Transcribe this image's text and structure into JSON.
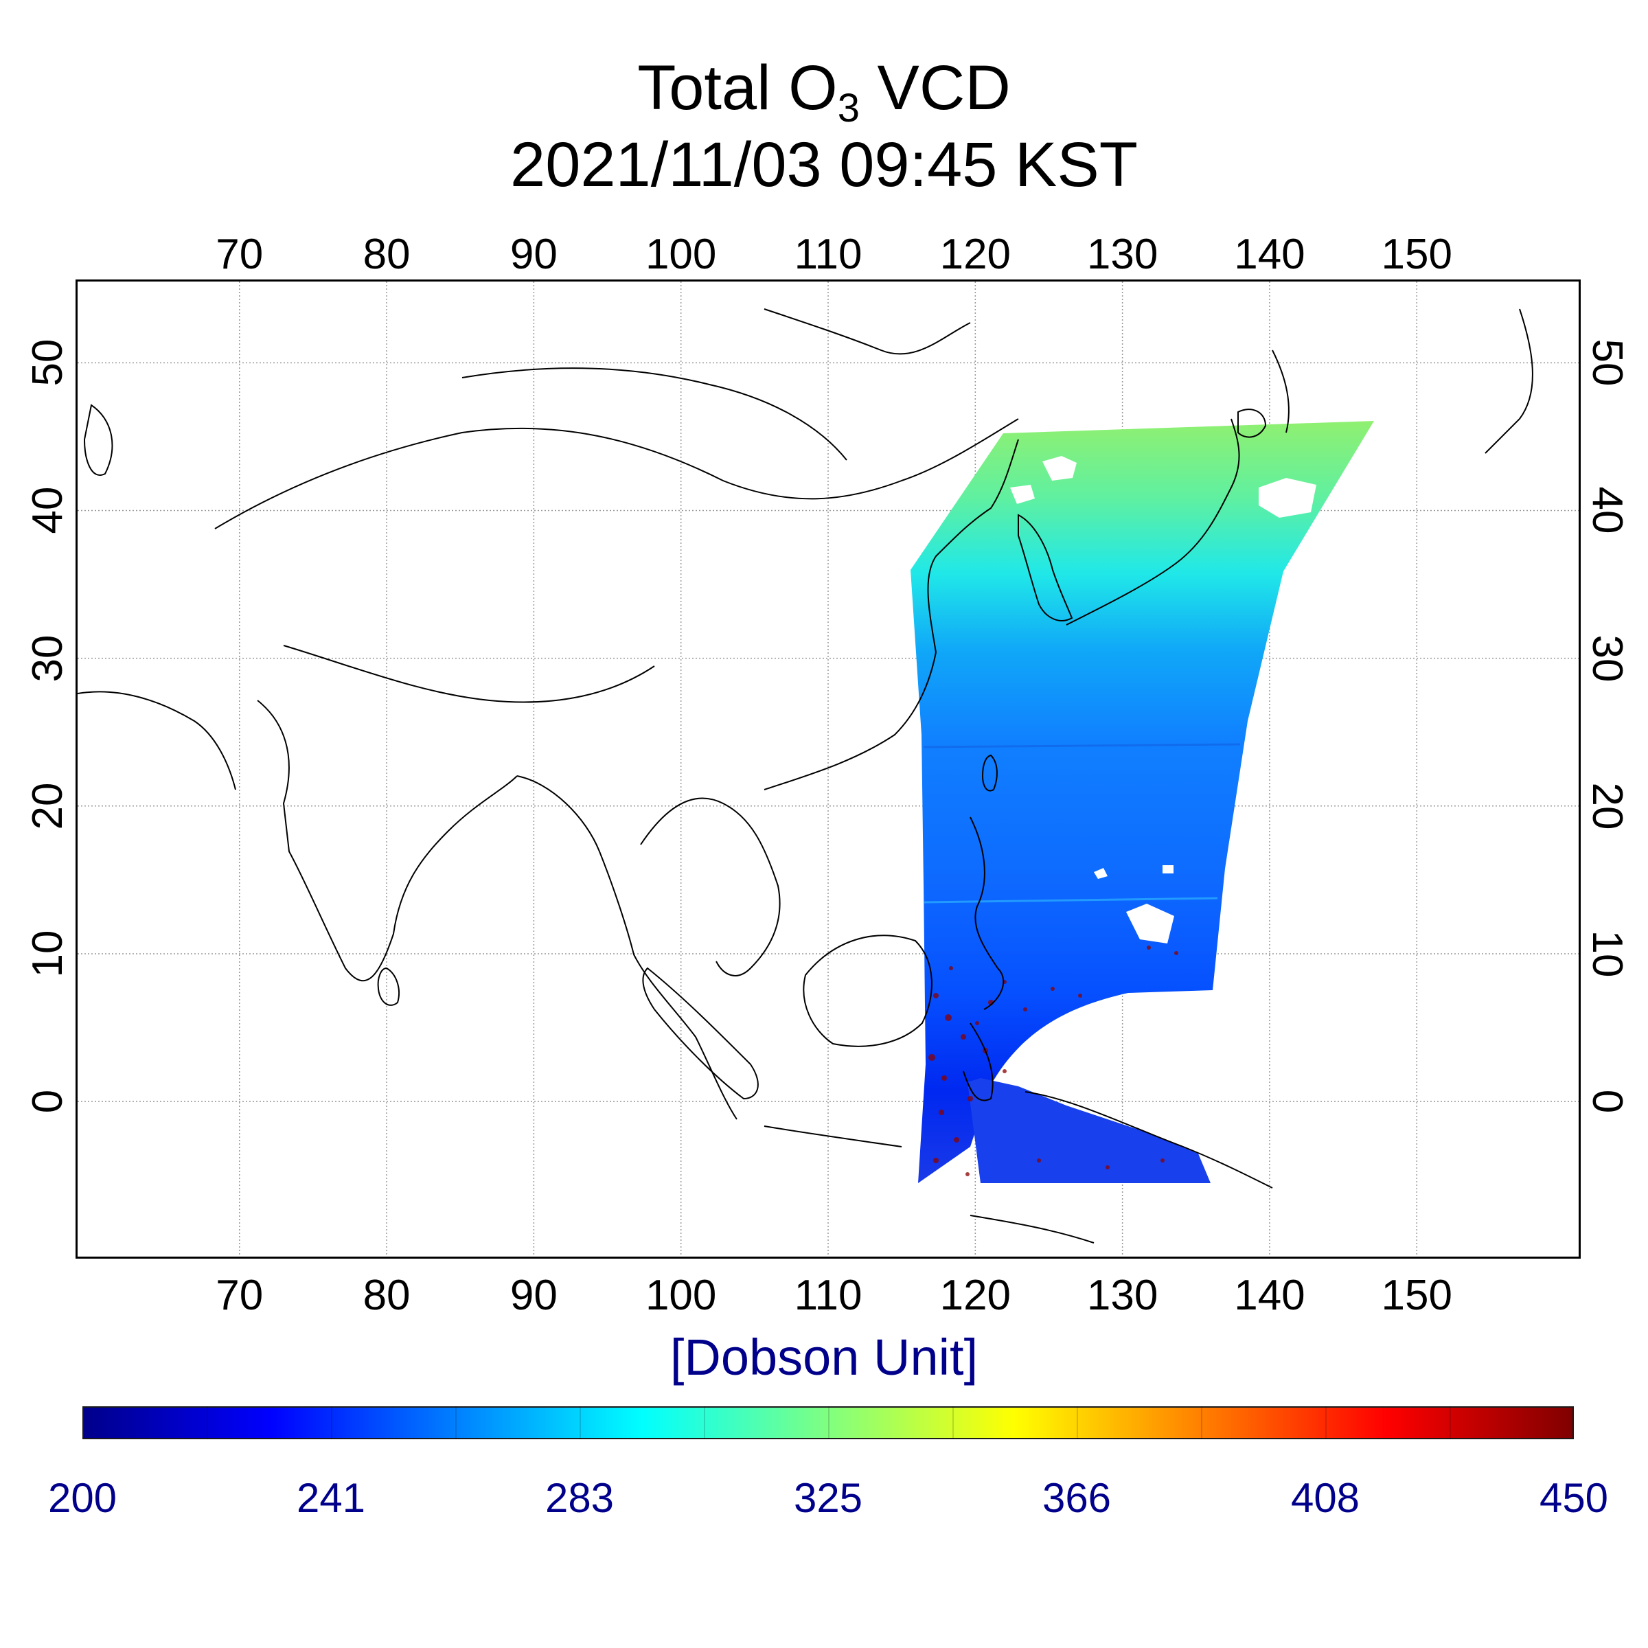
{
  "title": {
    "line1_prefix": "Total O",
    "line1_subscript": "3",
    "line1_suffix": " VCD",
    "line2": "2021/11/03 09:45 KST"
  },
  "map": {
    "longitude_ticks": [
      "70",
      "80",
      "90",
      "100",
      "110",
      "120",
      "130",
      "140",
      "150"
    ],
    "latitude_ticks": [
      "0",
      "10",
      "20",
      "30",
      "40",
      "50"
    ],
    "lon_range": [
      59,
      161
    ],
    "lat_range": [
      -10.5,
      55.5
    ],
    "gridlines": true
  },
  "colorbar": {
    "unit_label": "[Dobson Unit]",
    "tick_labels": [
      "200",
      "241",
      "283",
      "325",
      "366",
      "408",
      "450"
    ],
    "min": 200,
    "max": 450,
    "colors": [
      "#00008b",
      "#0000ff",
      "#0080ff",
      "#00ffff",
      "#80ff80",
      "#ffff00",
      "#ff8000",
      "#ff0000",
      "#800000"
    ]
  },
  "colors": {
    "text": "#000000",
    "unit_text": "#00008b"
  }
}
